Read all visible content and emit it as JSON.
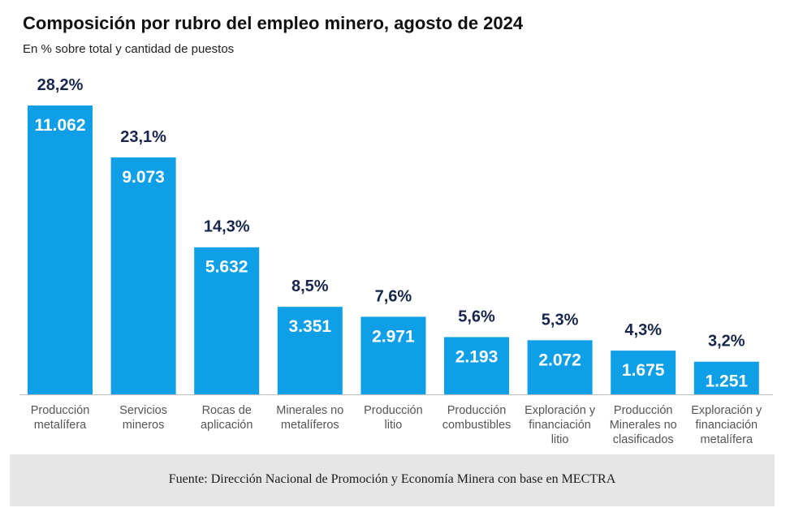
{
  "header": {
    "title": "Composición por rubro del empleo minero, agosto de 2024",
    "subtitle": "En % sobre total y cantidad de puestos"
  },
  "footer": {
    "source": "Fuente: Dirección Nacional de Promoción y Economía Minera con base en MECTRA"
  },
  "colors": {
    "bar": "#0f9fe6",
    "percent_label": "#17264a",
    "value_label": "#ffffff",
    "category_label": "#555555",
    "axis": "#bdbdbd"
  },
  "chart_data": {
    "type": "bar",
    "title": "Composición por rubro del empleo minero, agosto de 2024",
    "subtitle": "En % sobre total y cantidad de puestos",
    "categories": [
      [
        "Producción",
        "metalífera"
      ],
      [
        "Servicios",
        "mineros"
      ],
      [
        "Rocas de",
        "aplicación"
      ],
      [
        "Minerales no",
        "metalíferos"
      ],
      [
        "Producción",
        "litio"
      ],
      [
        "Producción",
        "combustibles"
      ],
      [
        "Exploración y",
        "financiación",
        "litio"
      ],
      [
        "Producción",
        "Minerales no",
        "clasificados"
      ],
      [
        "Exploración y",
        "financiación",
        "metalífera"
      ]
    ],
    "values": [
      11062,
      9073,
      5632,
      3351,
      2971,
      2193,
      2072,
      1675,
      1251
    ],
    "value_labels": [
      "11.062",
      "9.073",
      "5.632",
      "3.351",
      "2.971",
      "2.193",
      "2.072",
      "1.675",
      "1.251"
    ],
    "percent_labels": [
      "28,2%",
      "23,1%",
      "14,3%",
      "8,5%",
      "7,6%",
      "5,6%",
      "5,3%",
      "4,3%",
      "3,2%"
    ],
    "ylim": [
      0,
      11062
    ],
    "xlabel": "",
    "ylabel": "",
    "grid": false,
    "legend": "none"
  }
}
